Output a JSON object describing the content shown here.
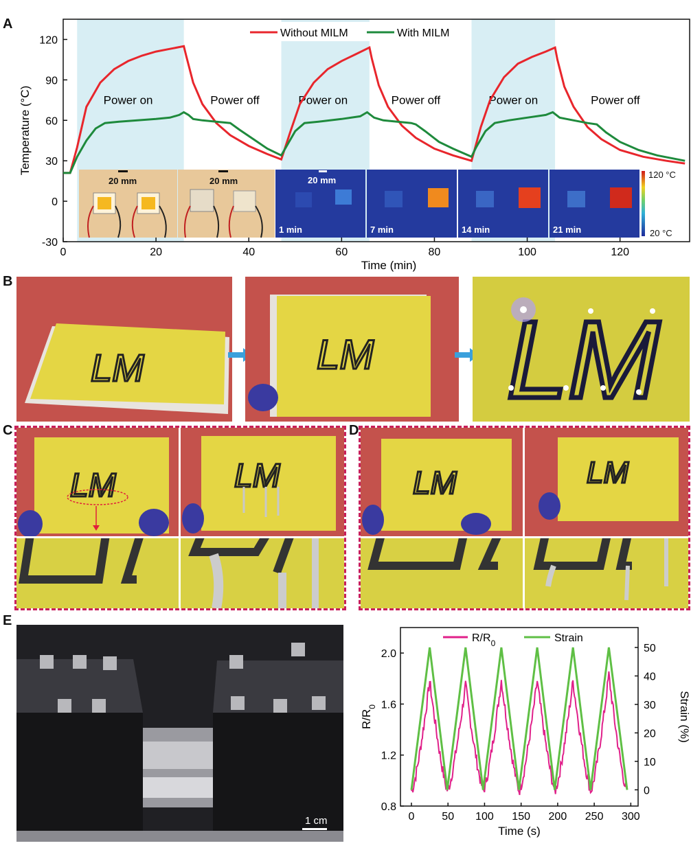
{
  "panels": {
    "a": "A",
    "b": "B",
    "c": "C",
    "d": "D",
    "e": "E"
  },
  "chart_data": [
    {
      "type": "line",
      "panel": "A",
      "xlabel": "Time (min)",
      "ylabel": "Temperature (°C)",
      "xlim": [
        0,
        135
      ],
      "ylim": [
        -30,
        135
      ],
      "xticks": [
        0,
        20,
        40,
        60,
        80,
        100,
        120
      ],
      "yticks": [
        -30,
        0,
        30,
        60,
        90,
        120
      ],
      "power_on_intervals": [
        [
          3,
          26
        ],
        [
          47,
          66
        ],
        [
          88,
          106
        ]
      ],
      "phase_labels": [
        {
          "text": "Power on",
          "x": 14,
          "y": 72
        },
        {
          "text": "Power off",
          "x": 37,
          "y": 72
        },
        {
          "text": "Power on",
          "x": 56,
          "y": 72
        },
        {
          "text": "Power off",
          "x": 76,
          "y": 72
        },
        {
          "text": "Power on",
          "x": 97,
          "y": 72
        },
        {
          "text": "Power off",
          "x": 119,
          "y": 72
        }
      ],
      "series": [
        {
          "name": "Without MILM",
          "color": "#e8262c",
          "x": [
            0,
            1.5,
            3,
            5,
            8,
            11,
            14,
            17,
            20,
            23,
            26,
            26.5,
            28,
            30,
            33,
            36,
            40,
            44,
            47,
            49,
            51,
            54,
            57,
            60,
            63,
            66,
            66.5,
            68,
            70,
            73,
            76,
            80,
            84,
            88,
            90,
            92,
            95,
            98,
            101,
            104,
            106,
            106.5,
            108,
            110,
            113,
            116,
            120,
            125,
            130,
            134
          ],
          "y": [
            21,
            21,
            40,
            70,
            88,
            98,
            104,
            108,
            111,
            113,
            115,
            108,
            88,
            72,
            58,
            49,
            41,
            35,
            31,
            52,
            72,
            88,
            98,
            104,
            109,
            114,
            106,
            86,
            70,
            56,
            47,
            39,
            34,
            30,
            55,
            75,
            92,
            102,
            107,
            111,
            114,
            105,
            85,
            70,
            55,
            46,
            38,
            33,
            30,
            28
          ]
        },
        {
          "name": "With MILM",
          "color": "#1e8a3c",
          "x": [
            0,
            1.5,
            3,
            5,
            7,
            9,
            12,
            16,
            20,
            23,
            25,
            26,
            27,
            28,
            30,
            33,
            36,
            38,
            41,
            44,
            47,
            48,
            50,
            52,
            55,
            60,
            64,
            65.5,
            67,
            69,
            72,
            75,
            76,
            78,
            81,
            84,
            88,
            89,
            91,
            93,
            96,
            100,
            104,
            105.5,
            107,
            110,
            113,
            115,
            117,
            120,
            124,
            128,
            134
          ],
          "y": [
            21,
            21,
            33,
            45,
            54,
            58,
            59,
            60,
            61,
            62,
            64,
            66,
            64,
            61,
            60,
            59,
            58,
            53,
            46,
            39,
            34,
            40,
            52,
            58,
            59,
            61,
            63,
            66,
            62,
            60,
            59,
            58,
            57,
            52,
            44,
            39,
            33,
            40,
            52,
            58,
            60,
            62,
            64,
            66,
            62,
            60,
            58,
            57,
            51,
            44,
            38,
            34,
            30
          ]
        }
      ]
    },
    {
      "type": "line",
      "panel": "E",
      "xlabel": "Time (s)",
      "ylabel_left": "R/R",
      "ylabel_left_sub": "0",
      "ylabel_right": "Strain (%)",
      "xlim": [
        -15,
        310
      ],
      "ylim_left": [
        0.8,
        2.2
      ],
      "ylim_right": [
        -5.7,
        57
      ],
      "xticks": [
        0,
        50,
        100,
        150,
        200,
        250,
        300
      ],
      "yticks_left": [
        0.8,
        1.2,
        1.6,
        2.0
      ],
      "yticks_right": [
        0,
        10,
        20,
        30,
        40,
        50
      ],
      "series": [
        {
          "name": "R/R0",
          "axis": "left",
          "color": "#e0208a",
          "peaks_t": [
            25,
            74,
            123,
            172,
            221,
            270
          ],
          "peak_values": [
            1.78,
            1.75,
            1.79,
            1.78,
            1.78,
            1.83
          ],
          "valley_value": 0.92
        },
        {
          "name": "Strain",
          "axis": "right",
          "color": "#5fbf45",
          "x": [
            0,
            25,
            49,
            74,
            98,
            123,
            147,
            172,
            196,
            221,
            245,
            270,
            295
          ],
          "y": [
            0,
            50,
            0,
            50,
            0,
            50,
            0,
            50,
            0,
            50,
            0,
            50,
            0
          ]
        }
      ]
    }
  ],
  "inset_labels": {
    "scale_a1": "20 mm",
    "scale_a2": "20 mm",
    "scale_a3": "20 mm",
    "t1": "1 min",
    "t2": "7 min",
    "t3": "14 min",
    "t4": "21 min",
    "cbar_max": "120 °C",
    "cbar_min": "20 °C"
  },
  "photo_text": {
    "lm": "LM",
    "scale_e": "1 cm"
  }
}
